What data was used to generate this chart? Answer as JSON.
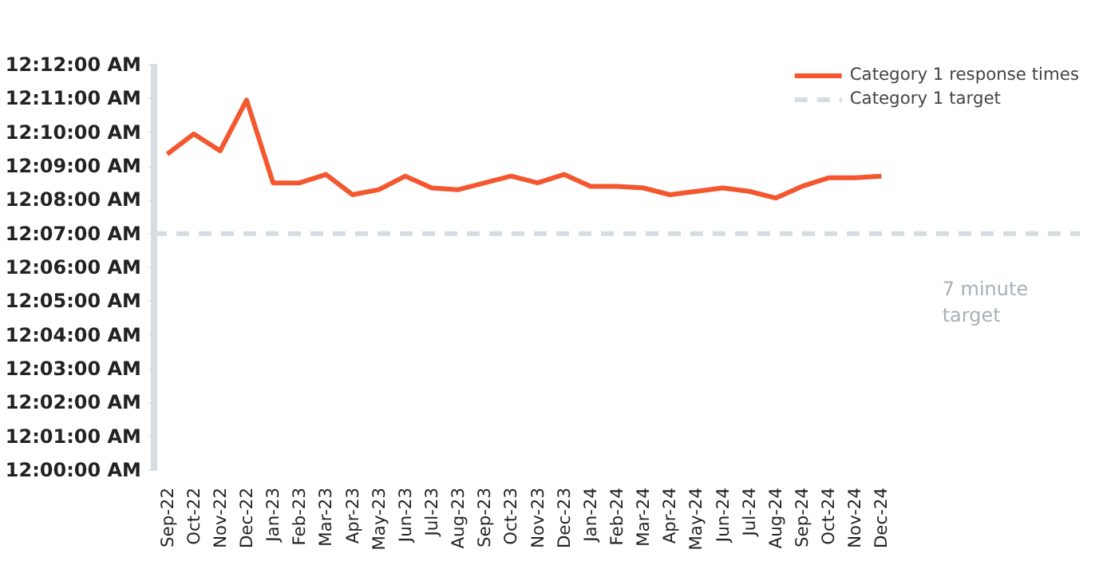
{
  "chart_data": {
    "type": "line",
    "categories": [
      "Sep-22",
      "Oct-22",
      "Nov-22",
      "Dec-22",
      "Jan-23",
      "Feb-23",
      "Mar-23",
      "Apr-23",
      "May-23",
      "Jun-23",
      "Jul-23",
      "Aug-23",
      "Sep-23",
      "Oct-23",
      "Nov-23",
      "Dec-23",
      "Jan-24",
      "Feb-24",
      "Mar-24",
      "Apr-24",
      "May-24",
      "Jun-24",
      "Jul-24",
      "Aug-24",
      "Sep-24",
      "Oct-24",
      "Nov-24",
      "Dec-24"
    ],
    "series": [
      {
        "name": "Category 1 response times",
        "color": "#f4572f",
        "values": [
          9.35,
          9.95,
          9.45,
          10.95,
          8.5,
          8.5,
          8.75,
          8.15,
          8.3,
          8.7,
          8.35,
          8.3,
          8.5,
          8.7,
          8.5,
          8.75,
          8.4,
          8.4,
          8.35,
          8.15,
          8.25,
          8.35,
          8.25,
          8.05,
          8.4,
          8.65,
          8.65,
          8.7
        ]
      }
    ],
    "ref_lines": [
      {
        "axis": "y",
        "value": 7,
        "label": "Category 1 target",
        "color": "#d6dde2",
        "line_style": "dashed"
      }
    ],
    "annotations": [
      "7 minute target"
    ],
    "ylim": [
      0,
      12
    ],
    "yticks": [
      {
        "value": 0,
        "label": "12:00:00 AM"
      },
      {
        "value": 1,
        "label": "12:01:00 AM"
      },
      {
        "value": 2,
        "label": "12:02:00 AM"
      },
      {
        "value": 3,
        "label": "12:03:00 AM"
      },
      {
        "value": 4,
        "label": "12:04:00 AM"
      },
      {
        "value": 5,
        "label": "12:05:00 AM"
      },
      {
        "value": 6,
        "label": "12:06:00 AM"
      },
      {
        "value": 7,
        "label": "12:07:00 AM"
      },
      {
        "value": 8,
        "label": "12:08:00 AM"
      },
      {
        "value": 9,
        "label": "12:09:00 AM"
      },
      {
        "value": 10,
        "label": "12:10:00 AM"
      },
      {
        "value": 11,
        "label": "12:11:00 AM"
      },
      {
        "value": 12,
        "label": "12:12:00 AM"
      }
    ],
    "grid": false,
    "legend": "top right",
    "marker": "none",
    "line_style": "solid"
  }
}
